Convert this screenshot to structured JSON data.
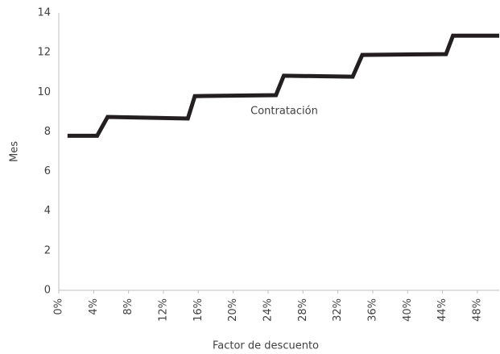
{
  "chart_data": {
    "type": "line",
    "x_label": "Factor de descuento",
    "y_label": "Mes",
    "annotation": "Contratación",
    "x": [
      1,
      4.4,
      5.6,
      14.8,
      15.6,
      24.9,
      25.8,
      33.7,
      34.8,
      44.4,
      45.2,
      50.5
    ],
    "series": [
      {
        "name": "Contratación",
        "color": "#231f20",
        "values": [
          7.8,
          7.8,
          8.75,
          8.67,
          9.8,
          9.85,
          10.83,
          10.78,
          11.88,
          11.92,
          12.85,
          12.85
        ]
      }
    ],
    "xlim": [
      0,
      50.5
    ],
    "xticks": [
      {
        "value": 0,
        "label": "0%"
      },
      {
        "value": 4,
        "label": "4%"
      },
      {
        "value": 8,
        "label": "8%"
      },
      {
        "value": 12,
        "label": "12%"
      },
      {
        "value": 16,
        "label": "16%"
      },
      {
        "value": 20,
        "label": "20%"
      },
      {
        "value": 24,
        "label": "24%"
      },
      {
        "value": 28,
        "label": "28%"
      },
      {
        "value": 32,
        "label": "32%"
      },
      {
        "value": 36,
        "label": "36%"
      },
      {
        "value": 40,
        "label": "40%"
      },
      {
        "value": 44,
        "label": "44%"
      },
      {
        "value": 48,
        "label": "48%"
      }
    ],
    "ylim": [
      0,
      14
    ],
    "yticks": [
      0,
      2,
      4,
      6,
      8,
      10,
      12,
      14
    ],
    "grid": false
  }
}
